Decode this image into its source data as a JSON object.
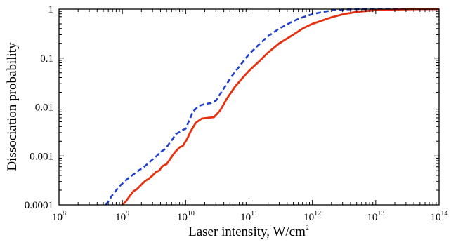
{
  "chart_data": {
    "type": "line",
    "xlabel": "Laser intensity, W/cm",
    "xlabel_sup": "2",
    "ylabel": "Dissociation probability",
    "xscale": "log",
    "yscale": "log",
    "xlim": [
      100000000.0,
      100000000000000.0
    ],
    "ylim": [
      0.0001,
      1
    ],
    "x_ticks": [
      {
        "base": "10",
        "exp": "8"
      },
      {
        "base": "10",
        "exp": "9"
      },
      {
        "base": "10",
        "exp": "10"
      },
      {
        "base": "10",
        "exp": "11"
      },
      {
        "base": "10",
        "exp": "12"
      },
      {
        "base": "10",
        "exp": "13"
      },
      {
        "base": "10",
        "exp": "14"
      }
    ],
    "y_ticks": [
      "0.0001",
      "0.001",
      "0.01",
      "0.1",
      "1"
    ],
    "grid": false,
    "legend": "none",
    "series": [
      {
        "style": "dashed",
        "color": "#1f3fcf",
        "x": [
          550000000.0,
          700000000.0,
          900000000.0,
          1200000000.0,
          1500000000.0,
          1800000000.0,
          2200000000.0,
          2600000000.0,
          3000000000.0,
          3500000000.0,
          4000000000.0,
          4800000000.0,
          5500000000.0,
          6200000000.0,
          7000000000.0,
          8000000000.0,
          9000000000.0,
          10000000000.0,
          11500000000.0,
          13000000000.0,
          16000000000.0,
          20000000000.0,
          25000000000.0,
          30000000000.0,
          40000000000.0,
          55000000000.0,
          75000000000.0,
          100000000000.0,
          150000000000.0,
          200000000000.0,
          300000000000.0,
          500000000000.0,
          700000000000.0,
          1000000000000.0,
          1500000000000.0,
          2000000000000.0,
          3000000000000.0,
          5000000000000.0,
          7000000000000.0,
          10000000000000.0,
          30000000000000.0,
          100000000000000.0
        ],
        "y": [
          0.0001,
          0.00016,
          0.00024,
          0.00034,
          0.00042,
          0.0005,
          0.0006,
          0.00072,
          0.00085,
          0.001,
          0.0012,
          0.0014,
          0.0018,
          0.0022,
          0.0028,
          0.0031,
          0.0034,
          0.0036,
          0.0055,
          0.008,
          0.0105,
          0.0115,
          0.012,
          0.0135,
          0.024,
          0.045,
          0.075,
          0.12,
          0.2,
          0.28,
          0.4,
          0.57,
          0.68,
          0.79,
          0.88,
          0.94,
          0.98,
          1.0,
          1.0,
          1.0,
          1.0,
          1.0
        ]
      },
      {
        "style": "solid",
        "color": "#e8300e",
        "x": [
          1000000000.0,
          1150000000.0,
          1300000000.0,
          1500000000.0,
          1700000000.0,
          2000000000.0,
          2300000000.0,
          2600000000.0,
          3000000000.0,
          3400000000.0,
          3800000000.0,
          4300000000.0,
          5000000000.0,
          5800000000.0,
          6800000000.0,
          8000000000.0,
          9000000000.0,
          10500000000.0,
          12000000000.0,
          14500000000.0,
          18000000000.0,
          22000000000.0,
          28000000000.0,
          35000000000.0,
          45000000000.0,
          60000000000.0,
          80000000000.0,
          100000000000.0,
          150000000000.0,
          200000000000.0,
          300000000000.0,
          500000000000.0,
          700000000000.0,
          1000000000000.0,
          2000000000000.0,
          3000000000000.0,
          5000000000000.0,
          10000000000000.0,
          20000000000000.0,
          50000000000000.0,
          100000000000000.0
        ],
        "y": [
          0.0001,
          0.00012,
          0.00015,
          0.00019,
          0.00021,
          0.00026,
          0.00031,
          0.00034,
          0.0004,
          0.00047,
          0.0005,
          0.00062,
          0.00068,
          0.0009,
          0.0012,
          0.0015,
          0.0016,
          0.0022,
          0.0032,
          0.0048,
          0.0058,
          0.006,
          0.0062,
          0.0085,
          0.015,
          0.026,
          0.04,
          0.055,
          0.09,
          0.13,
          0.2,
          0.3,
          0.4,
          0.5,
          0.68,
          0.78,
          0.88,
          0.95,
          0.98,
          1.0,
          1.0
        ]
      }
    ]
  }
}
